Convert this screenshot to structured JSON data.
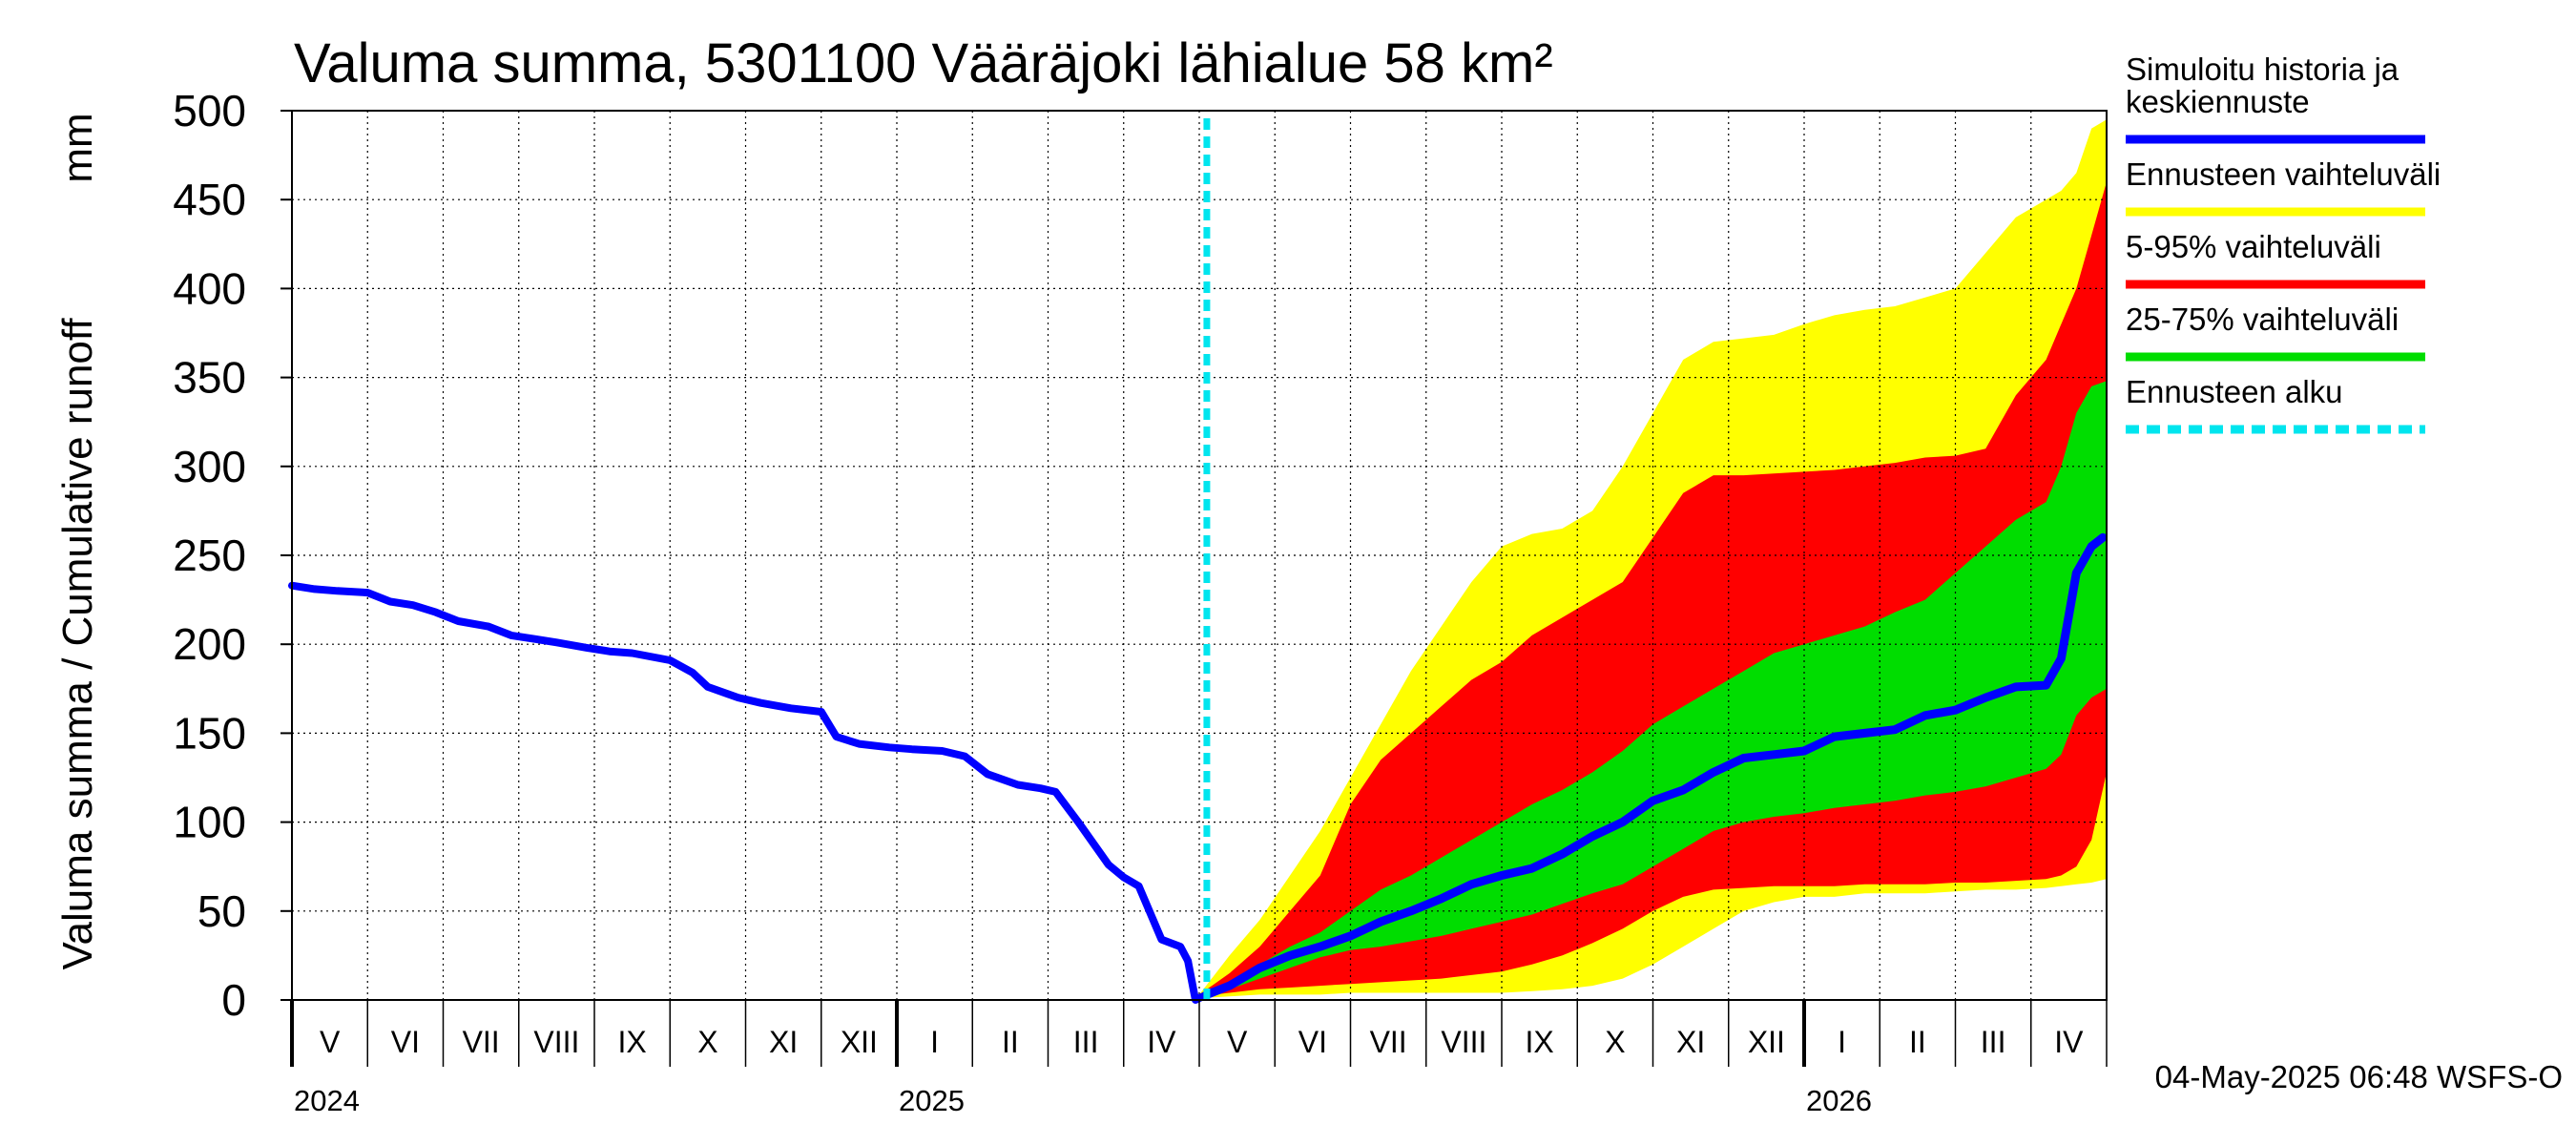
{
  "chart_data": {
    "type": "area",
    "title": "Valuma summa, 5301100 Vääräjoki lähialue 58 km²",
    "ylabel": "Valuma summa / Cumulative runoff",
    "yunit": "mm",
    "ylim": [
      0,
      500
    ],
    "yticks": [
      0,
      50,
      100,
      150,
      200,
      250,
      300,
      350,
      400,
      450,
      500
    ],
    "grid": true,
    "x_start": "2024-05-01",
    "x_end": "2026-05-31",
    "forecast_start": "2025-05-04",
    "months": [
      "V",
      "VI",
      "VII",
      "VIII",
      "IX",
      "X",
      "XI",
      "XII",
      "I",
      "II",
      "III",
      "IV",
      "V",
      "VI",
      "VII",
      "VIII",
      "IX",
      "X",
      "XI",
      "XII",
      "I",
      "II",
      "III",
      "IV"
    ],
    "years": [
      {
        "label": "2024",
        "month_index": 0
      },
      {
        "label": "2025",
        "month_index": 8
      },
      {
        "label": "2026",
        "month_index": 20
      }
    ],
    "legend": [
      {
        "label": "Simuloitu historia ja keskiennuste",
        "lines": [
          "Simuloitu historia ja",
          "keskiennuste"
        ],
        "color": "#0000ff",
        "style": "solid"
      },
      {
        "label": "Ennusteen vaihteluväli",
        "lines": [
          "Ennusteen vaihteluväli"
        ],
        "color": "#ffff00",
        "style": "solid"
      },
      {
        "label": "5-95% vaihteluväli",
        "lines": [
          "5-95% vaihteluväli"
        ],
        "color": "#ff0000",
        "style": "solid"
      },
      {
        "label": "25-75% vaihteluväli",
        "lines": [
          "25-75% vaihteluväli"
        ],
        "color": "#00dd00",
        "style": "solid"
      },
      {
        "label": "Ennusteen alku",
        "lines": [
          "Ennusteen alku"
        ],
        "color": "#00e5ee",
        "style": "dashed"
      }
    ],
    "history": {
      "x_months": [
        0,
        0.3,
        0.6,
        1.0,
        1.3,
        1.6,
        1.9,
        2.2,
        2.6,
        2.9,
        3.2,
        3.5,
        3.9,
        4.2,
        4.5,
        5.0,
        5.3,
        5.5,
        5.9,
        6.2,
        6.6,
        7.0,
        7.2,
        7.5,
        7.9,
        8.2,
        8.6,
        8.9,
        9.2,
        9.6,
        9.9,
        10.1,
        10.4,
        10.8,
        11.0,
        11.2,
        11.5,
        11.75,
        11.85
      ],
      "values": [
        233,
        231,
        230,
        229,
        224,
        222,
        218,
        213,
        210,
        205,
        203,
        201,
        198,
        196,
        195,
        191,
        184,
        176,
        170,
        167,
        164,
        162,
        148,
        144,
        142,
        141,
        140,
        137,
        127,
        121,
        119,
        117,
        100,
        76,
        69,
        64,
        34,
        30,
        22
      ]
    },
    "median": {
      "x_months": [
        12.1,
        12.4,
        12.8,
        13.2,
        13.6,
        14.0,
        14.4,
        14.8,
        15.2,
        15.6,
        16.0,
        16.4,
        16.8,
        17.2,
        17.6,
        18.0,
        18.4,
        18.8,
        19.2,
        19.6,
        20.0,
        20.4,
        20.8,
        21.2,
        21.6,
        22.0,
        22.4,
        22.8,
        23.2,
        23.4,
        23.6,
        23.8,
        23.95
      ],
      "values": [
        3,
        8,
        18,
        25,
        30,
        36,
        44,
        50,
        57,
        65,
        70,
        74,
        82,
        92,
        100,
        112,
        118,
        128,
        136,
        138,
        140,
        148,
        150,
        152,
        160,
        163,
        170,
        176,
        177,
        192,
        240,
        255,
        260
      ]
    },
    "bands": {
      "x_months": [
        12.0,
        12.4,
        12.8,
        13.2,
        13.6,
        14.0,
        14.4,
        14.8,
        15.2,
        15.6,
        16.0,
        16.4,
        16.8,
        17.2,
        17.6,
        18.0,
        18.4,
        18.8,
        19.2,
        19.6,
        20.0,
        20.4,
        20.8,
        21.2,
        21.6,
        22.0,
        22.4,
        22.8,
        23.2,
        23.4,
        23.6,
        23.8,
        24.0
      ],
      "full_min": [
        1,
        2,
        3,
        3,
        3,
        4,
        4,
        4,
        4,
        4,
        4,
        5,
        6,
        8,
        12,
        20,
        30,
        40,
        50,
        55,
        58,
        58,
        60,
        60,
        60,
        61,
        62,
        62,
        63,
        64,
        65,
        66,
        68
      ],
      "full_max": [
        3,
        25,
        45,
        70,
        95,
        125,
        155,
        185,
        210,
        235,
        255,
        262,
        265,
        275,
        300,
        330,
        360,
        370,
        372,
        374,
        380,
        385,
        388,
        390,
        395,
        400,
        420,
        440,
        450,
        455,
        465,
        490,
        495
      ],
      "p5": [
        2,
        4,
        6,
        7,
        8,
        9,
        10,
        11,
        12,
        14,
        16,
        20,
        25,
        32,
        40,
        50,
        58,
        62,
        63,
        64,
        64,
        64,
        65,
        65,
        65,
        66,
        66,
        67,
        68,
        70,
        75,
        90,
        128
      ],
      "p95": [
        3,
        15,
        30,
        50,
        70,
        110,
        135,
        150,
        165,
        180,
        190,
        205,
        215,
        225,
        235,
        260,
        285,
        295,
        295,
        296,
        297,
        298,
        300,
        302,
        305,
        306,
        310,
        340,
        360,
        380,
        400,
        430,
        460
      ],
      "p25": [
        2,
        6,
        12,
        18,
        24,
        28,
        30,
        33,
        36,
        40,
        44,
        48,
        54,
        60,
        65,
        75,
        85,
        95,
        100,
        103,
        105,
        108,
        110,
        112,
        115,
        117,
        120,
        125,
        130,
        138,
        160,
        170,
        175
      ],
      "p75": [
        3,
        10,
        20,
        30,
        38,
        50,
        62,
        70,
        80,
        90,
        100,
        110,
        118,
        128,
        140,
        155,
        165,
        175,
        185,
        195,
        200,
        205,
        210,
        218,
        225,
        240,
        255,
        270,
        280,
        300,
        330,
        345,
        348
      ]
    }
  },
  "footer": {
    "timestamp": "04-May-2025 06:48 WSFS-O"
  },
  "colors": {
    "history_line": "#0000ff",
    "full_range": "#ffff00",
    "p5_95": "#ff0000",
    "p25_75": "#00dd00",
    "forecast_line": "#00e5ee",
    "grid": "#000000"
  }
}
